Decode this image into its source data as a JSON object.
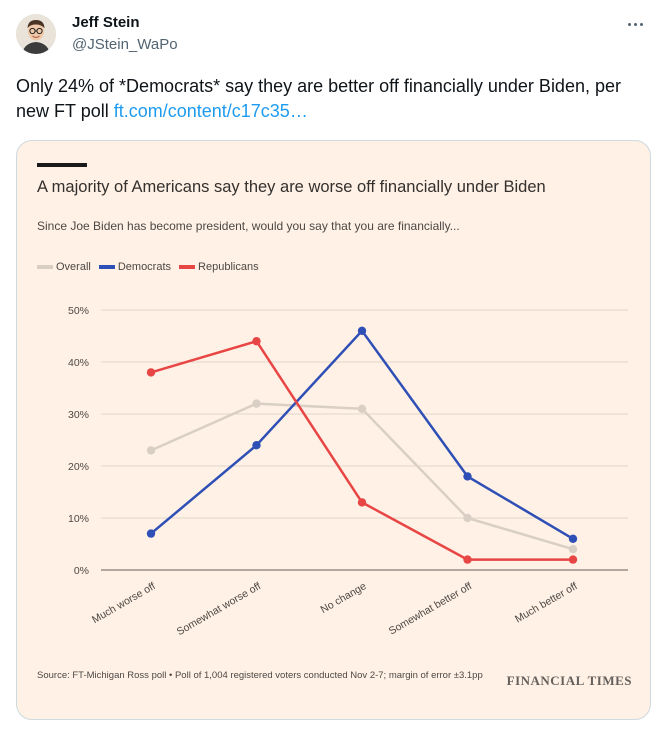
{
  "tweet": {
    "author_name": "Jeff Stein",
    "author_handle": "@JStein_WaPo",
    "text": "Only 24% of *Democrats* say they are better off financially under Biden, per new FT poll ",
    "link_text": "ft.com/content/c17c35…"
  },
  "icons": {
    "avatar": "avatar",
    "more": "more-options-icon"
  },
  "chart_data": {
    "type": "line",
    "title": "A majority of Americans say they are worse off financially under Biden",
    "subtitle": "Since Joe Biden has become president, would you say that you are financially...",
    "categories": [
      "Much worse off",
      "Somewhat worse off",
      "No change",
      "Somewhat better off",
      "Much better off"
    ],
    "series": [
      {
        "name": "Overall",
        "color": "#d9cfc5",
        "values": [
          23,
          32,
          31,
          10,
          4
        ]
      },
      {
        "name": "Democrats",
        "color": "#2e4fb5",
        "values": [
          7,
          24,
          46,
          18,
          6
        ]
      },
      {
        "name": "Republicans",
        "color": "#e84545",
        "values": [
          38,
          44,
          13,
          2,
          2
        ]
      }
    ],
    "ylim": [
      0,
      50
    ],
    "yticks": [
      "0%",
      "10%",
      "20%",
      "30%",
      "40%",
      "50%"
    ],
    "grid": true,
    "legend_position": "top-left",
    "source": "Source: FT-Michigan Ross poll • Poll of 1,004 registered voters conducted Nov 2-7; margin of error ±3.1pp",
    "logo": "FINANCIAL TIMES"
  }
}
